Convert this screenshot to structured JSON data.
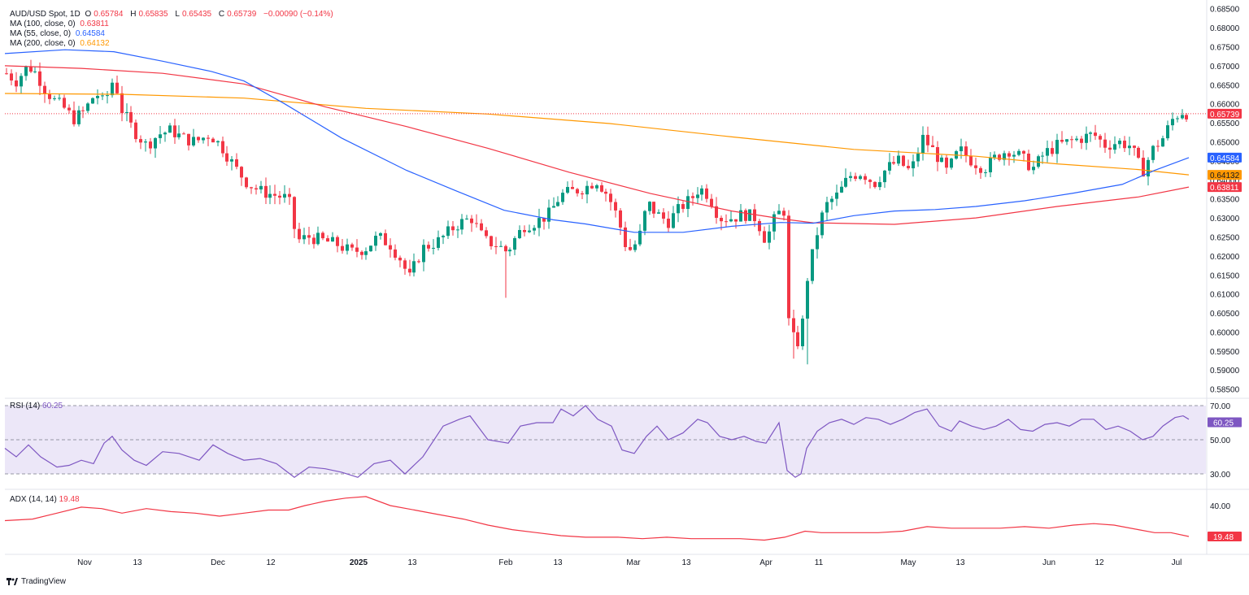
{
  "header": {
    "symbol": "AUD/USD Spot, 1D",
    "open_label": "O",
    "open": "0.65784",
    "high_label": "H",
    "high": "0.65835",
    "low_label": "L",
    "low": "0.65435",
    "close_label": "C",
    "close": "0.65739",
    "change": "−0.00090 (−0.14%)"
  },
  "ma_legend": [
    {
      "label": "MA (100, close, 0)",
      "value": "0.63811",
      "color": "#f23645"
    },
    {
      "label": "MA (55, close, 0)",
      "value": "0.64584",
      "color": "#2962ff"
    },
    {
      "label": "MA (200, close, 0)",
      "value": "0.64132",
      "color": "#ff9800"
    }
  ],
  "price_axis": {
    "ticks": [
      "0.68500",
      "0.68000",
      "0.67500",
      "0.67000",
      "0.66500",
      "0.66000",
      "0.65500",
      "0.65000",
      "0.64500",
      "0.64000",
      "0.63500",
      "0.63000",
      "0.62500",
      "0.62000",
      "0.61500",
      "0.61000",
      "0.60500",
      "0.60000",
      "0.59500",
      "0.59000",
      "0.58500"
    ],
    "last_price_badge": "0.65739",
    "ma55_badge": "0.64584",
    "ma200_badge": "0.64132",
    "ma100_badge": "0.63811"
  },
  "time_axis": {
    "labels": [
      "Nov",
      "13",
      "Dec",
      "12",
      "2025",
      "13",
      "Feb",
      "13",
      "Mar",
      "13",
      "Apr",
      "11",
      "May",
      "13",
      "Jun",
      "12",
      "Jul"
    ]
  },
  "rsi": {
    "title": "RSI (14)",
    "value": "60.25",
    "ticks": [
      "70.00",
      "50.00",
      "30.00"
    ],
    "badge": "60.25"
  },
  "adx": {
    "title": "ADX (14, 14)",
    "value": "19.48",
    "ticks": [
      "40.00",
      "20.00"
    ],
    "badge": "19.48"
  },
  "brand": {
    "name": "TradingView"
  },
  "colors": {
    "up": "#089981",
    "down": "#f23645",
    "ma100": "#f23645",
    "ma55": "#2962ff",
    "ma200": "#ff9800",
    "rsi": "#7e57c2",
    "adx": "#f23645",
    "rsi_band": "#ece7f8"
  },
  "chart_data": {
    "type": "candlestick",
    "instrument": "AUD/USD Spot",
    "timeframe": "1D",
    "ylim": [
      0.583,
      0.686
    ],
    "ohlc_key_points": [
      {
        "date": "Oct 22",
        "close": 0.668
      },
      {
        "date": "Nov 1",
        "close": 0.658
      },
      {
        "date": "Nov 6",
        "close": 0.668
      },
      {
        "date": "Nov 13",
        "close": 0.652
      },
      {
        "date": "Dec 2",
        "close": 0.652
      },
      {
        "date": "Dec 12",
        "close": 0.637
      },
      {
        "date": "Dec 20",
        "close": 0.623
      },
      {
        "date": "Jan 13",
        "close": 0.615
      },
      {
        "date": "Feb 3",
        "low": 0.609,
        "close": 0.621
      },
      {
        "date": "Feb 20",
        "close": 0.64
      },
      {
        "date": "Mar 4",
        "close": 0.621
      },
      {
        "date": "Mar 17",
        "close": 0.639
      },
      {
        "date": "Apr 2",
        "close": 0.633
      },
      {
        "date": "Apr 8",
        "low": 0.592,
        "close": 0.596
      },
      {
        "date": "Apr 11",
        "close": 0.629
      },
      {
        "date": "May 7",
        "close": 0.651
      },
      {
        "date": "Jun 2",
        "close": 0.649
      },
      {
        "date": "Jun 23",
        "close": 0.641
      },
      {
        "date": "Jul 2",
        "high": 0.65835,
        "close": 0.65739
      }
    ],
    "moving_averages": {
      "MA 55": 0.64584,
      "MA 100": 0.63811,
      "MA 200": 0.64132
    },
    "rsi": {
      "period": 14,
      "last": 60.25,
      "overbought": 70,
      "oversold": 30
    },
    "adx": {
      "period": 14,
      "last": 19.48
    }
  }
}
